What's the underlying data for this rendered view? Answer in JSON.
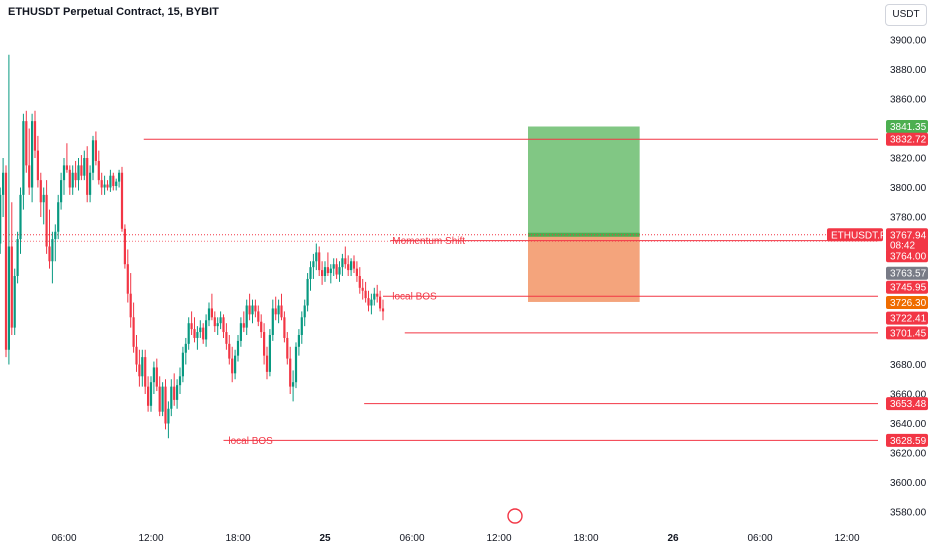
{
  "header": {
    "title": "ETHUSDT Perpetual Contract, 15, BYBIT",
    "currency_button": "USDT"
  },
  "chart_data": {
    "type": "candlestick",
    "symbol": "ETHUSDT Perpetual Contract",
    "interval": "15",
    "exchange": "BYBIT",
    "ylim": [
      3570,
      3915
    ],
    "y_ticks": [
      3580,
      3600,
      3620,
      3640,
      3660,
      3680,
      3700,
      3720,
      3740,
      3760,
      3780,
      3800,
      3820,
      3840,
      3860,
      3880,
      3900
    ],
    "y_tick_labels": [
      "3580.00",
      "3600.00",
      "3620.00",
      "3640.00",
      "3660.00",
      "3680.00",
      "3700.00",
      "3720.00",
      "3740.00",
      "3760.00",
      "3780.00",
      "3800.00",
      "3820.00",
      "3840.00",
      "3860.00",
      "3880.00",
      "3900.00"
    ],
    "x_ticks": [
      {
        "label": "06:00",
        "hours": 6,
        "bold": false
      },
      {
        "label": "12:00",
        "hours": 12,
        "bold": false
      },
      {
        "label": "18:00",
        "hours": 18,
        "bold": false
      },
      {
        "label": "25",
        "hours": 24,
        "bold": true
      },
      {
        "label": "06:00",
        "hours": 30,
        "bold": false
      },
      {
        "label": "12:00",
        "hours": 36,
        "bold": false
      },
      {
        "label": "18:00",
        "hours": 42,
        "bold": false
      },
      {
        "label": "26",
        "hours": 48,
        "bold": true
      },
      {
        "label": "06:00",
        "hours": 54,
        "bold": false
      },
      {
        "label": "12:00",
        "hours": 60,
        "bold": false
      }
    ],
    "colors": {
      "up": "#089981",
      "down": "#f23645",
      "line": "#f23645",
      "profit": "#81c784",
      "profit_line": "#4caf50",
      "loss": "#f4a47c"
    },
    "levels": [
      {
        "value": 3832.72,
        "start": 11.5,
        "label": "3832.72"
      },
      {
        "value": 3764.0,
        "start": 28.5,
        "label": "3764.00"
      },
      {
        "value": 3726.3,
        "start": 28.0,
        "label": ""
      },
      {
        "value": 3701.45,
        "start": 29.5,
        "label": "3701.45"
      },
      {
        "value": 3653.48,
        "start": 26.7,
        "label": "3653.48"
      },
      {
        "value": 3628.59,
        "start": 17.0,
        "label": "3628.59"
      }
    ],
    "position": {
      "start": 38.0,
      "end": 45.7,
      "entry": 3767.94,
      "target": 3841.35,
      "stop": 3722.41
    },
    "annotations": [
      {
        "text": "Momentum Shift",
        "x": 28.5,
        "y": 3764.0
      },
      {
        "text": "local BOS",
        "x": 28.5,
        "y": 3726.3
      },
      {
        "text": "local BOS",
        "x": 17.2,
        "y": 3628.59
      }
    ],
    "price_tags": [
      {
        "label": "3841.35",
        "value": 3841.35,
        "color": "#4caf50"
      },
      {
        "label": "3832.72",
        "value": 3832.72,
        "color": "#f23645"
      },
      {
        "label": "3767.94",
        "value": 3767.94,
        "color": "#f23645"
      },
      {
        "label": "08:42",
        "value": 3761.0,
        "color": "#f23645"
      },
      {
        "label": "3764.00",
        "value": 3753.7,
        "color": "#f23645"
      },
      {
        "label": "3763.57",
        "value": 3741.9,
        "color": "#787b86"
      },
      {
        "label": "3745.95",
        "value": 3732.4,
        "color": "#f23645"
      },
      {
        "label": "3726.30",
        "value": 3722.0,
        "color": "#ef6c00"
      },
      {
        "label": "3722.41",
        "value": 3711.4,
        "color": "#f23645"
      },
      {
        "label": "3701.45",
        "value": 3701.45,
        "color": "#f23645"
      },
      {
        "label": "3653.48",
        "value": 3653.48,
        "color": "#f23645"
      },
      {
        "label": "3628.59",
        "value": 3628.59,
        "color": "#f23645"
      }
    ],
    "symbol_tag": {
      "label": "ETHUSDT.P",
      "value": 3767.94
    },
    "candles": [
      [
        -0.6,
        3755,
        3770,
        3740,
        3760
      ],
      [
        -0.4,
        3760,
        3800,
        3750,
        3795
      ],
      [
        -0.2,
        3795,
        3810,
        3760,
        3765
      ],
      [
        0.0,
        3765,
        3772,
        3725,
        3730
      ],
      [
        0.2,
        3730,
        3760,
        3710,
        3750
      ],
      [
        0.4,
        3750,
        3795,
        3740,
        3790
      ],
      [
        0.6,
        3790,
        3805,
        3770,
        3775
      ],
      [
        0.8,
        3775,
        3790,
        3755,
        3760
      ],
      [
        1.0,
        3760,
        3782,
        3735,
        3745
      ],
      [
        1.2,
        3745,
        3765,
        3720,
        3755
      ],
      [
        1.4,
        3755,
        3770,
        3740,
        3762
      ],
      [
        1.6,
        3762,
        3800,
        3755,
        3795
      ],
      [
        1.8,
        3795,
        3820,
        3780,
        3810
      ],
      [
        2.0,
        3810,
        3815,
        3685,
        3690
      ],
      [
        2.2,
        3690,
        3890,
        3680,
        3760
      ],
      [
        2.4,
        3760,
        3790,
        3700,
        3705
      ],
      [
        2.6,
        3705,
        3745,
        3700,
        3740
      ],
      [
        2.8,
        3740,
        3770,
        3735,
        3765
      ],
      [
        3.0,
        3765,
        3800,
        3755,
        3795
      ],
      [
        3.2,
        3795,
        3850,
        3785,
        3845
      ],
      [
        3.4,
        3845,
        3852,
        3810,
        3815
      ],
      [
        3.6,
        3815,
        3840,
        3795,
        3800
      ],
      [
        3.8,
        3800,
        3850,
        3790,
        3845
      ],
      [
        4.0,
        3845,
        3852,
        3820,
        3825
      ],
      [
        4.2,
        3825,
        3835,
        3800,
        3805
      ],
      [
        4.4,
        3805,
        3810,
        3780,
        3790
      ],
      [
        4.6,
        3790,
        3800,
        3775,
        3795
      ],
      [
        4.8,
        3795,
        3805,
        3755,
        3760
      ],
      [
        5.0,
        3760,
        3785,
        3745,
        3750
      ],
      [
        5.2,
        3750,
        3770,
        3735,
        3765
      ],
      [
        5.4,
        3765,
        3775,
        3750,
        3770
      ],
      [
        5.6,
        3770,
        3795,
        3765,
        3790
      ],
      [
        5.8,
        3790,
        3810,
        3785,
        3805
      ],
      [
        6.0,
        3805,
        3820,
        3795,
        3815
      ],
      [
        6.2,
        3815,
        3830,
        3810,
        3812
      ],
      [
        6.4,
        3812,
        3815,
        3795,
        3800
      ],
      [
        6.6,
        3800,
        3815,
        3795,
        3810
      ],
      [
        6.8,
        3810,
        3818,
        3800,
        3805
      ],
      [
        7.0,
        3805,
        3820,
        3798,
        3815
      ],
      [
        7.2,
        3815,
        3822,
        3805,
        3808
      ],
      [
        7.4,
        3808,
        3825,
        3805,
        3820
      ],
      [
        7.6,
        3820,
        3828,
        3790,
        3795
      ],
      [
        7.8,
        3795,
        3815,
        3790,
        3810
      ],
      [
        8.0,
        3810,
        3835,
        3805,
        3832
      ],
      [
        8.2,
        3832,
        3838,
        3815,
        3818
      ],
      [
        8.4,
        3818,
        3825,
        3802,
        3805
      ],
      [
        8.6,
        3805,
        3810,
        3795,
        3800
      ],
      [
        8.8,
        3800,
        3808,
        3795,
        3802
      ],
      [
        9.0,
        3802,
        3805,
        3798,
        3800
      ],
      [
        9.2,
        3800,
        3812,
        3797,
        3808
      ],
      [
        9.4,
        3808,
        3810,
        3798,
        3801
      ],
      [
        9.6,
        3801,
        3806,
        3798,
        3804
      ],
      [
        9.8,
        3804,
        3812,
        3800,
        3810
      ],
      [
        10.0,
        3810,
        3814,
        3770,
        3772
      ],
      [
        10.2,
        3772,
        3775,
        3745,
        3748
      ],
      [
        10.4,
        3748,
        3758,
        3722,
        3728
      ],
      [
        10.6,
        3728,
        3742,
        3705,
        3712
      ],
      [
        10.8,
        3712,
        3722,
        3688,
        3692
      ],
      [
        11.0,
        3692,
        3700,
        3675,
        3680
      ],
      [
        11.2,
        3680,
        3690,
        3665,
        3672
      ],
      [
        11.4,
        3672,
        3690,
        3665,
        3685
      ],
      [
        11.6,
        3685,
        3690,
        3660,
        3665
      ],
      [
        11.8,
        3665,
        3672,
        3648,
        3652
      ],
      [
        12.0,
        3652,
        3672,
        3648,
        3668
      ],
      [
        12.2,
        3668,
        3682,
        3660,
        3678
      ],
      [
        12.4,
        3678,
        3684,
        3662,
        3665
      ],
      [
        12.6,
        3665,
        3672,
        3645,
        3648
      ],
      [
        12.8,
        3648,
        3668,
        3645,
        3665
      ],
      [
        13.0,
        3665,
        3670,
        3636,
        3640
      ],
      [
        13.2,
        3640,
        3655,
        3630,
        3650
      ],
      [
        13.4,
        3650,
        3670,
        3645,
        3665
      ],
      [
        13.6,
        3665,
        3674,
        3652,
        3656
      ],
      [
        13.8,
        3656,
        3670,
        3650,
        3666
      ],
      [
        14.0,
        3666,
        3678,
        3660,
        3672
      ],
      [
        14.2,
        3672,
        3692,
        3668,
        3688
      ],
      [
        14.4,
        3688,
        3698,
        3680,
        3694
      ],
      [
        14.6,
        3694,
        3712,
        3690,
        3708
      ],
      [
        14.8,
        3708,
        3716,
        3700,
        3704
      ],
      [
        15.0,
        3704,
        3712,
        3695,
        3698
      ],
      [
        15.2,
        3698,
        3706,
        3690,
        3702
      ],
      [
        15.4,
        3702,
        3710,
        3698,
        3705
      ],
      [
        15.6,
        3705,
        3708,
        3694,
        3697
      ],
      [
        15.8,
        3697,
        3714,
        3692,
        3710
      ],
      [
        16.0,
        3710,
        3722,
        3706,
        3718
      ],
      [
        16.2,
        3718,
        3728,
        3710,
        3712
      ],
      [
        16.4,
        3712,
        3716,
        3702,
        3706
      ],
      [
        16.6,
        3706,
        3712,
        3700,
        3708
      ],
      [
        16.8,
        3708,
        3716,
        3704,
        3712
      ],
      [
        17.0,
        3712,
        3714,
        3698,
        3702
      ],
      [
        17.2,
        3702,
        3708,
        3690,
        3694
      ],
      [
        17.4,
        3694,
        3700,
        3680,
        3684
      ],
      [
        17.6,
        3684,
        3692,
        3668,
        3674
      ],
      [
        17.8,
        3674,
        3690,
        3670,
        3686
      ],
      [
        18.0,
        3686,
        3700,
        3682,
        3696
      ],
      [
        18.2,
        3696,
        3712,
        3692,
        3708
      ],
      [
        18.4,
        3708,
        3716,
        3702,
        3705
      ],
      [
        18.6,
        3705,
        3724,
        3700,
        3720
      ],
      [
        18.8,
        3720,
        3728,
        3710,
        3714
      ],
      [
        19.0,
        3714,
        3724,
        3708,
        3720
      ],
      [
        19.2,
        3720,
        3724,
        3712,
        3716
      ],
      [
        19.4,
        3716,
        3720,
        3706,
        3709
      ],
      [
        19.6,
        3709,
        3714,
        3698,
        3702
      ],
      [
        19.8,
        3702,
        3708,
        3680,
        3686
      ],
      [
        20.0,
        3686,
        3692,
        3670,
        3675
      ],
      [
        20.2,
        3675,
        3704,
        3672,
        3700
      ],
      [
        20.4,
        3700,
        3724,
        3696,
        3718
      ],
      [
        20.6,
        3718,
        3726,
        3710,
        3714
      ],
      [
        20.8,
        3714,
        3724,
        3708,
        3720
      ],
      [
        21.0,
        3720,
        3728,
        3710,
        3712
      ],
      [
        21.2,
        3712,
        3716,
        3695,
        3698
      ],
      [
        21.4,
        3698,
        3702,
        3680,
        3684
      ],
      [
        21.6,
        3684,
        3692,
        3660,
        3665
      ],
      [
        21.8,
        3665,
        3676,
        3655,
        3668
      ],
      [
        22.0,
        3668,
        3695,
        3664,
        3692
      ],
      [
        22.2,
        3692,
        3704,
        3686,
        3700
      ],
      [
        22.4,
        3700,
        3716,
        3694,
        3712
      ],
      [
        22.6,
        3712,
        3724,
        3706,
        3720
      ],
      [
        22.8,
        3720,
        3742,
        3716,
        3738
      ],
      [
        23.0,
        3738,
        3750,
        3730,
        3746
      ],
      [
        23.2,
        3746,
        3755,
        3738,
        3750
      ],
      [
        23.4,
        3750,
        3762,
        3744,
        3756
      ],
      [
        23.6,
        3756,
        3760,
        3740,
        3744
      ],
      [
        23.8,
        3744,
        3750,
        3734,
        3740
      ],
      [
        24.0,
        3740,
        3750,
        3736,
        3746
      ],
      [
        24.2,
        3746,
        3756,
        3740,
        3742
      ],
      [
        24.4,
        3742,
        3748,
        3735,
        3745
      ],
      [
        24.6,
        3745,
        3752,
        3740,
        3748
      ],
      [
        24.8,
        3748,
        3752,
        3738,
        3741
      ],
      [
        25.0,
        3741,
        3750,
        3736,
        3746
      ],
      [
        25.2,
        3746,
        3755,
        3740,
        3752
      ],
      [
        25.4,
        3752,
        3760,
        3745,
        3748
      ],
      [
        25.6,
        3748,
        3754,
        3740,
        3744
      ],
      [
        25.8,
        3744,
        3752,
        3740,
        3750
      ],
      [
        26.0,
        3750,
        3754,
        3742,
        3745
      ],
      [
        26.2,
        3745,
        3750,
        3736,
        3740
      ],
      [
        26.4,
        3740,
        3746,
        3728,
        3732
      ],
      [
        26.6,
        3732,
        3738,
        3724,
        3730
      ],
      [
        26.8,
        3730,
        3736,
        3722,
        3725
      ],
      [
        27.0,
        3725,
        3730,
        3716,
        3720
      ],
      [
        27.2,
        3720,
        3728,
        3714,
        3724
      ],
      [
        27.4,
        3724,
        3732,
        3720,
        3728
      ],
      [
        27.6,
        3728,
        3734,
        3722,
        3726
      ],
      [
        27.8,
        3726,
        3730,
        3716,
        3718
      ],
      [
        28.0,
        3718,
        3724,
        3710,
        3716
      ]
    ]
  }
}
